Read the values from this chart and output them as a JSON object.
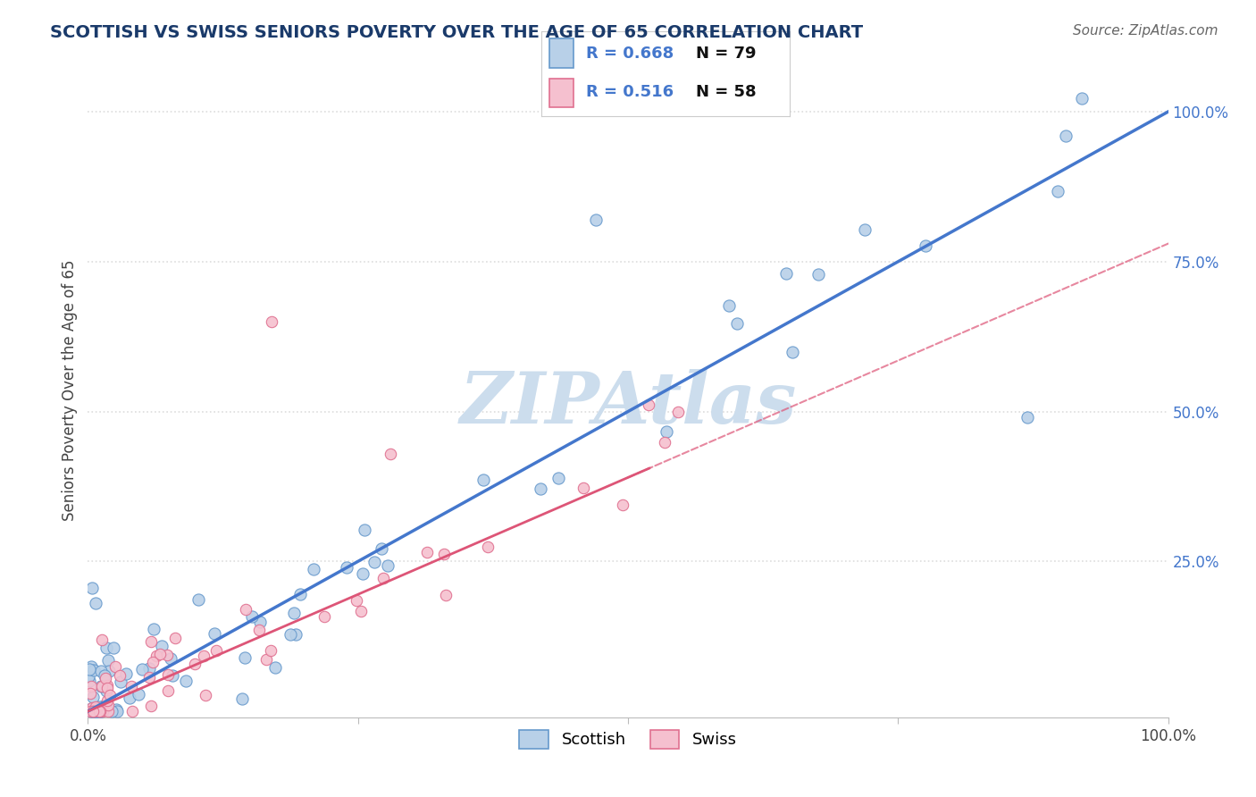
{
  "title": "SCOTTISH VS SWISS SENIORS POVERTY OVER THE AGE OF 65 CORRELATION CHART",
  "source": "Source: ZipAtlas.com",
  "ylabel": "Seniors Poverty Over the Age of 65",
  "xlim": [
    0,
    1
  ],
  "ylim": [
    -0.01,
    1.08
  ],
  "x_ticks": [
    0.0,
    0.25,
    0.5,
    0.75,
    1.0
  ],
  "x_tick_labels": [
    "0.0%",
    "",
    "",
    "",
    "100.0%"
  ],
  "y_ticks": [
    0.25,
    0.5,
    0.75,
    1.0
  ],
  "y_tick_labels": [
    "25.0%",
    "50.0%",
    "75.0%",
    "100.0%"
  ],
  "scottish_R": 0.668,
  "scottish_N": 79,
  "swiss_R": 0.516,
  "swiss_N": 58,
  "scottish_color": "#b8d0e8",
  "swiss_color": "#f5c0cf",
  "scottish_edge_color": "#6699cc",
  "swiss_edge_color": "#e07090",
  "scottish_line_color": "#4477cc",
  "swiss_line_color": "#dd5577",
  "tick_label_color": "#4477cc",
  "watermark_color": "#ccdded",
  "background_color": "#ffffff",
  "grid_color": "#dddddd",
  "title_color": "#1a3a6a",
  "source_color": "#666666"
}
